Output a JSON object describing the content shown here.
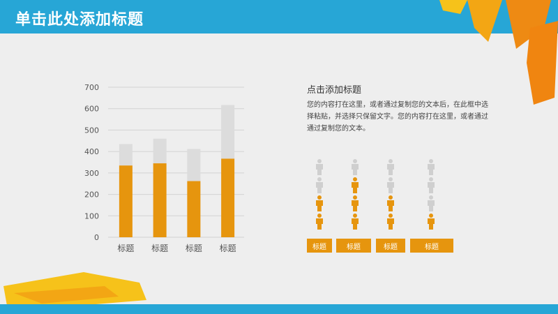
{
  "header": {
    "title": "单击此处添加标题"
  },
  "colors": {
    "accent": "#e6950e",
    "header": "#27a6d6",
    "stack_top": "#dcdcdc"
  },
  "chart_data": {
    "type": "bar",
    "stacked": true,
    "categories": [
      "标题",
      "标题",
      "标题",
      "标题"
    ],
    "series": [
      {
        "values": [
          335,
          345,
          262,
          367
        ]
      },
      {
        "values": [
          100,
          115,
          150,
          250
        ]
      }
    ],
    "yticks": [
      "0",
      "100",
      "200",
      "300",
      "400",
      "500",
      "600",
      "700"
    ],
    "ylim": [
      0,
      700
    ],
    "grid": true
  },
  "panel": {
    "title": "点击添加标题",
    "text": "您的内容打在这里，或者通过复制您的文本后，在此框中选择粘贴，并选择只保留文字。您的内容打在这里，或者通过通过复制您的文本。"
  },
  "pictograph": {
    "columns": [
      {
        "total": 4,
        "filled": 2,
        "label": "标题"
      },
      {
        "total": 4,
        "filled": 3,
        "label": "标题"
      },
      {
        "total": 4,
        "filled": 2,
        "label": "标题"
      },
      {
        "total": 4,
        "filled": 1,
        "label": "标题"
      }
    ]
  }
}
